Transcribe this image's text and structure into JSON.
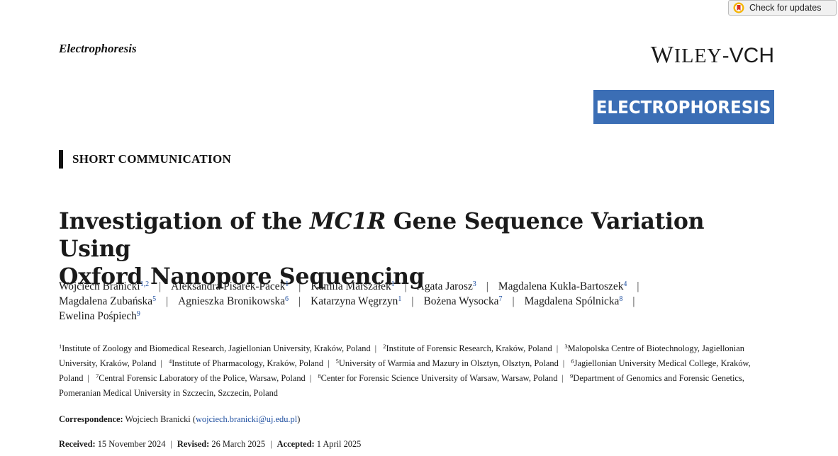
{
  "check_updates": {
    "label": "Check for updates",
    "icon": "crossmark-icon"
  },
  "journal_name": "Electrophoresis",
  "publisher": {
    "name": "WILEY-VCH"
  },
  "journal_logo": {
    "text": "ELECTROPHORESIS",
    "color": "#3b6eb5"
  },
  "article_type": "SHORT COMMUNICATION",
  "title": {
    "prefix": "Investigation of the ",
    "gene": "MC1R",
    "suffix_line1": " Gene Sequence Variation Using",
    "line2": "Oxford Nanopore Sequencing"
  },
  "authors": [
    {
      "name": "Wojciech Branicki",
      "aff": "1,2"
    },
    {
      "name": "Aleksandra Pisarek-Pacek",
      "aff": "1"
    },
    {
      "name": "Kamila Marszałek",
      "aff": "1"
    },
    {
      "name": "Agata Jarosz",
      "aff": "3"
    },
    {
      "name": "Magdalena Kukla-Bartoszek",
      "aff": "4"
    },
    {
      "name": "Magdalena Zubańska",
      "aff": "5"
    },
    {
      "name": "Agnieszka Bronikowska",
      "aff": "6"
    },
    {
      "name": "Katarzyna Węgrzyn",
      "aff": "1"
    },
    {
      "name": "Bożena Wysocka",
      "aff": "7"
    },
    {
      "name": "Magdalena Spólnicka",
      "aff": "8"
    },
    {
      "name": "Ewelina Pośpiech",
      "aff": "9"
    }
  ],
  "affiliations": [
    {
      "num": "1",
      "text": "Institute of Zoology and Biomedical Research, Jagiellonian University, Kraków, Poland"
    },
    {
      "num": "2",
      "text": "Institute of Forensic Research, Kraków, Poland"
    },
    {
      "num": "3",
      "text": "Malopolska Centre of Biotechnology, Jagiellonian University, Kraków, Poland"
    },
    {
      "num": "4",
      "text": "Institute of Pharmacology, Kraków, Poland"
    },
    {
      "num": "5",
      "text": "University of Warmia and Mazury in Olsztyn, Olsztyn, Poland"
    },
    {
      "num": "6",
      "text": "Jagiellonian University Medical College, Kraków, Poland"
    },
    {
      "num": "7",
      "text": "Central Forensic Laboratory of the Police, Warsaw, Poland"
    },
    {
      "num": "8",
      "text": "Center for Forensic Science University of Warsaw, Warsaw, Poland"
    },
    {
      "num": "9",
      "text": "Department of Genomics and Forensic Genetics, Pomeranian Medical University in Szczecin, Szczecin, Poland"
    }
  ],
  "correspondence": {
    "label": "Correspondence:",
    "name": "Wojciech Branicki",
    "email": "wojciech.branicki@uj.edu.pl"
  },
  "dates": {
    "received_label": "Received:",
    "received": "15 November 2024",
    "revised_label": "Revised:",
    "revised": "26 March 2025",
    "accepted_label": "Accepted:",
    "accepted": "1 April 2025"
  }
}
